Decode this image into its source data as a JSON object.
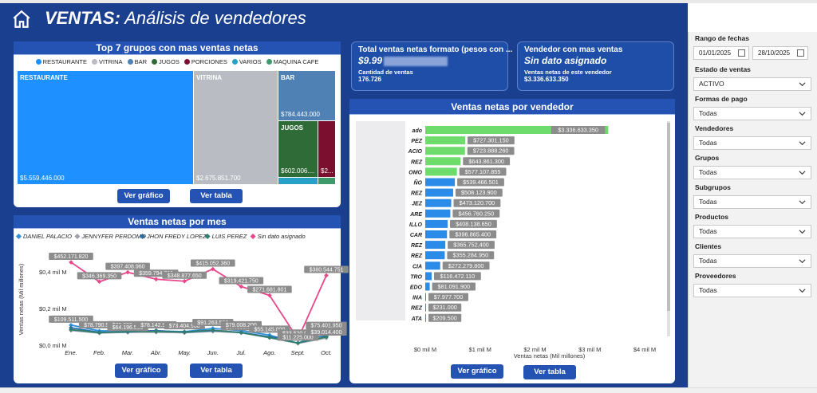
{
  "header": {
    "title_bold": "VENTAS:",
    "title_rest": " Análisis de vendedores"
  },
  "treemap": {
    "title": "Top 7 grupos con mas ventas netas",
    "legend": [
      {
        "name": "RESTAURANTE",
        "color": "#1e90ff"
      },
      {
        "name": "VITRINA",
        "color": "#b9bcc2"
      },
      {
        "name": "BAR",
        "color": "#4f81b4"
      },
      {
        "name": "JUGOS",
        "color": "#2e6b36"
      },
      {
        "name": "PORCIONES",
        "color": "#7b0f2f"
      },
      {
        "name": "VARIOS",
        "color": "#27a1c5"
      },
      {
        "name": "MAQUINA CAFE",
        "color": "#3c9a6b"
      }
    ],
    "tiles": {
      "restaurante": {
        "label": "RESTAURANTE",
        "value": "$5.559.446.000"
      },
      "vitrina": {
        "label": "VITRINA",
        "value": "$2.675.851.700"
      },
      "bar": {
        "label": "BAR",
        "value": "$784.443.000"
      },
      "jugos": {
        "label": "JUGOS",
        "value": "$602.006...."
      },
      "porciones": {
        "label": "",
        "value": "$2..."
      }
    },
    "btn_chart": "Ver gráfico",
    "btn_table": "Ver tabla"
  },
  "kpi1": {
    "title": "Total ventas netas formato (pesos con ...",
    "value": "$9.99",
    "label": "Cantidad de ventas",
    "sub": "176.726"
  },
  "kpi2": {
    "title": "Vendedor con mas ventas",
    "value": "Sin dato asignado",
    "label": "Ventas netas de este vendedor",
    "sub": "$3.336.633.350"
  },
  "line": {
    "title": "Ventas netas por mes",
    "btn_chart": "Ver gráfico",
    "btn_table": "Ver tabla"
  },
  "bars": {
    "title": "Ventas netas por vendedor",
    "btn_chart": "Ver gráfico",
    "btn_table": "Ver tabla"
  },
  "chart_data": [
    {
      "type": "line",
      "title": "Ventas netas por mes",
      "ylabel": "Ventas netas (Mil millones)",
      "categories": [
        "Ene.",
        "Feb.",
        "Mar.",
        "Abr.",
        "May.",
        "Jun.",
        "Jul.",
        "Ago.",
        "Sept.",
        "Oct."
      ],
      "yticks": [
        "$0,0 mil M",
        "$0,2 mil M",
        "$0,4 mil M"
      ],
      "ylim": [
        0,
        0.5
      ],
      "legend_position": "top",
      "series": [
        {
          "name": "DANIEL PALACIO",
          "color": "#2f8fd8",
          "values": [
            0.1095,
            0.078,
            0.079,
            0.078,
            0.074,
            0.0913,
            0.0797,
            0.055,
            0.011,
            0.075
          ]
        },
        {
          "name": "JENNYFER PERDOMO",
          "color": "#9ea2a8",
          "values": [
            0.08,
            0.066,
            0.07,
            0.07,
            0.068,
            0.075,
            0.068,
            0.04,
            0.01,
            0.039
          ]
        },
        {
          "name": "JHON FREDY LOPEZ",
          "color": "#2a6fa8",
          "values": [
            0.095,
            0.07,
            0.072,
            0.08,
            0.07,
            0.08,
            0.07,
            0.045,
            0.033,
            0.05
          ]
        },
        {
          "name": "LUIS PEREZ",
          "color": "#2e7d6e",
          "values": [
            0.085,
            0.068,
            0.075,
            0.075,
            0.072,
            0.082,
            0.068,
            0.042,
            0.012,
            0.045
          ]
        },
        {
          "name": "Sin dato asignado",
          "color": "#e8478b",
          "values": [
            0.4521,
            0.3464,
            0.3974,
            0.3598,
            0.3489,
            0.415,
            0.3194,
            0.2716,
            0.0335,
            0.3805
          ]
        }
      ],
      "labels": [
        {
          "text": "$452.171.820",
          "cat": 0,
          "y": 0.4521
        },
        {
          "text": "$346.369.350",
          "cat": 1,
          "y": 0.3464
        },
        {
          "text": "$397.408.960",
          "cat": 2,
          "y": 0.3974
        },
        {
          "text": "$359.794.700",
          "cat": 3,
          "y": 0.3598
        },
        {
          "text": "$348.877.650",
          "cat": 4,
          "y": 0.3489
        },
        {
          "text": "$415.052.360",
          "cat": 5,
          "y": 0.415
        },
        {
          "text": "$319.421.750",
          "cat": 6,
          "y": 0.3194
        },
        {
          "text": "$271.681.801",
          "cat": 7,
          "y": 0.2716
        },
        {
          "text": "$380.544.751",
          "cat": 9,
          "y": 0.3805
        },
        {
          "text": "$109.511.500",
          "cat": 0,
          "y": 0.1095
        },
        {
          "text": "$78.790.560",
          "cat": 1,
          "y": 0.0788
        },
        {
          "text": "$79.309.450",
          "cat": 2,
          "y": 0.0793
        },
        {
          "text": "$64.196.555",
          "cat": 2,
          "y": 0.0642
        },
        {
          "text": "$78.142.900",
          "cat": 3,
          "y": 0.0781
        },
        {
          "text": "$73.404.900",
          "cat": 4,
          "y": 0.0734
        },
        {
          "text": "$91.263.500",
          "cat": 5,
          "y": 0.0913
        },
        {
          "text": "$67.686.000",
          "cat": 6,
          "y": 0.0677
        },
        {
          "text": "$79.008.200",
          "cat": 6,
          "y": 0.079
        },
        {
          "text": "$55.145.000",
          "cat": 7,
          "y": 0.0551
        },
        {
          "text": "$33.520.000",
          "cat": 8,
          "y": 0.0335
        },
        {
          "text": "$11.225.000",
          "cat": 8,
          "y": 0.0112
        },
        {
          "text": "$75.401.950",
          "cat": 9,
          "y": 0.0754
        },
        {
          "text": "$39.014.400",
          "cat": 9,
          "y": 0.039
        }
      ]
    },
    {
      "type": "bar",
      "orientation": "horizontal",
      "title": "Ventas netas por vendedor",
      "xlabel": "Ventas netas (Mil millones)",
      "xticks": [
        "$0 mil M",
        "$1 mil M",
        "$2 mil M",
        "$3 mil M",
        "$4 mil M"
      ],
      "xlim": [
        0,
        4
      ],
      "categories": [
        "ado",
        "PEZ",
        "ACIO",
        "REZ",
        "OMO",
        "ÑO",
        "REZ",
        "JEZ",
        "ARE",
        "ILLO",
        "CAR",
        "REZ",
        "REZ",
        "CIA",
        "TRO",
        "EDO",
        "INA",
        "REZ",
        "ATA"
      ],
      "values": [
        3.3366,
        0.7273,
        0.7239,
        0.6439,
        0.5771,
        0.5395,
        0.5081,
        0.4731,
        0.4568,
        0.4081,
        0.3969,
        0.3658,
        0.3553,
        0.2723,
        0.1165,
        0.0811,
        0.008,
        0.0002,
        0.0002
      ],
      "value_labels": [
        "$3.336.633.350",
        "$727.301.150",
        "$723.888.260",
        "$643.861.300",
        "$577.107.855",
        "$539.466.501",
        "$508.123.900",
        "$473.120.700",
        "$456.760.250",
        "$408.138.650",
        "$396.865.400",
        "$365.752.400",
        "$355.284.950",
        "$272.279.800",
        "$116.472.110",
        "$81.091.900",
        "$7.977.700",
        "$231.000",
        "$209.500"
      ],
      "colors": [
        "#6ddc6d",
        "#6ddc6d",
        "#6ddc6d",
        "#6ddc6d",
        "#6ddc6d",
        "#2b8be8",
        "#2b8be8",
        "#2b8be8",
        "#2b8be8",
        "#2b8be8",
        "#2b8be8",
        "#2b8be8",
        "#2b8be8",
        "#2b8be8",
        "#2b8be8",
        "#2b8be8",
        "#2b8be8",
        "#2b8be8",
        "#2b8be8"
      ]
    }
  ],
  "filters": {
    "date_label": "Rango de fechas",
    "date_from": "01/01/2025",
    "date_to": "28/10/2025",
    "items": [
      {
        "label": "Estado de ventas",
        "value": "ACTIVO"
      },
      {
        "label": "Formas de pago",
        "value": "Todas"
      },
      {
        "label": "Vendedores",
        "value": "Todas"
      },
      {
        "label": "Grupos",
        "value": "Todas"
      },
      {
        "label": "Subgrupos",
        "value": "Todas"
      },
      {
        "label": "Productos",
        "value": "Todas"
      },
      {
        "label": "Clientes",
        "value": "Todas"
      },
      {
        "label": "Proveedores",
        "value": "Todas"
      }
    ]
  }
}
